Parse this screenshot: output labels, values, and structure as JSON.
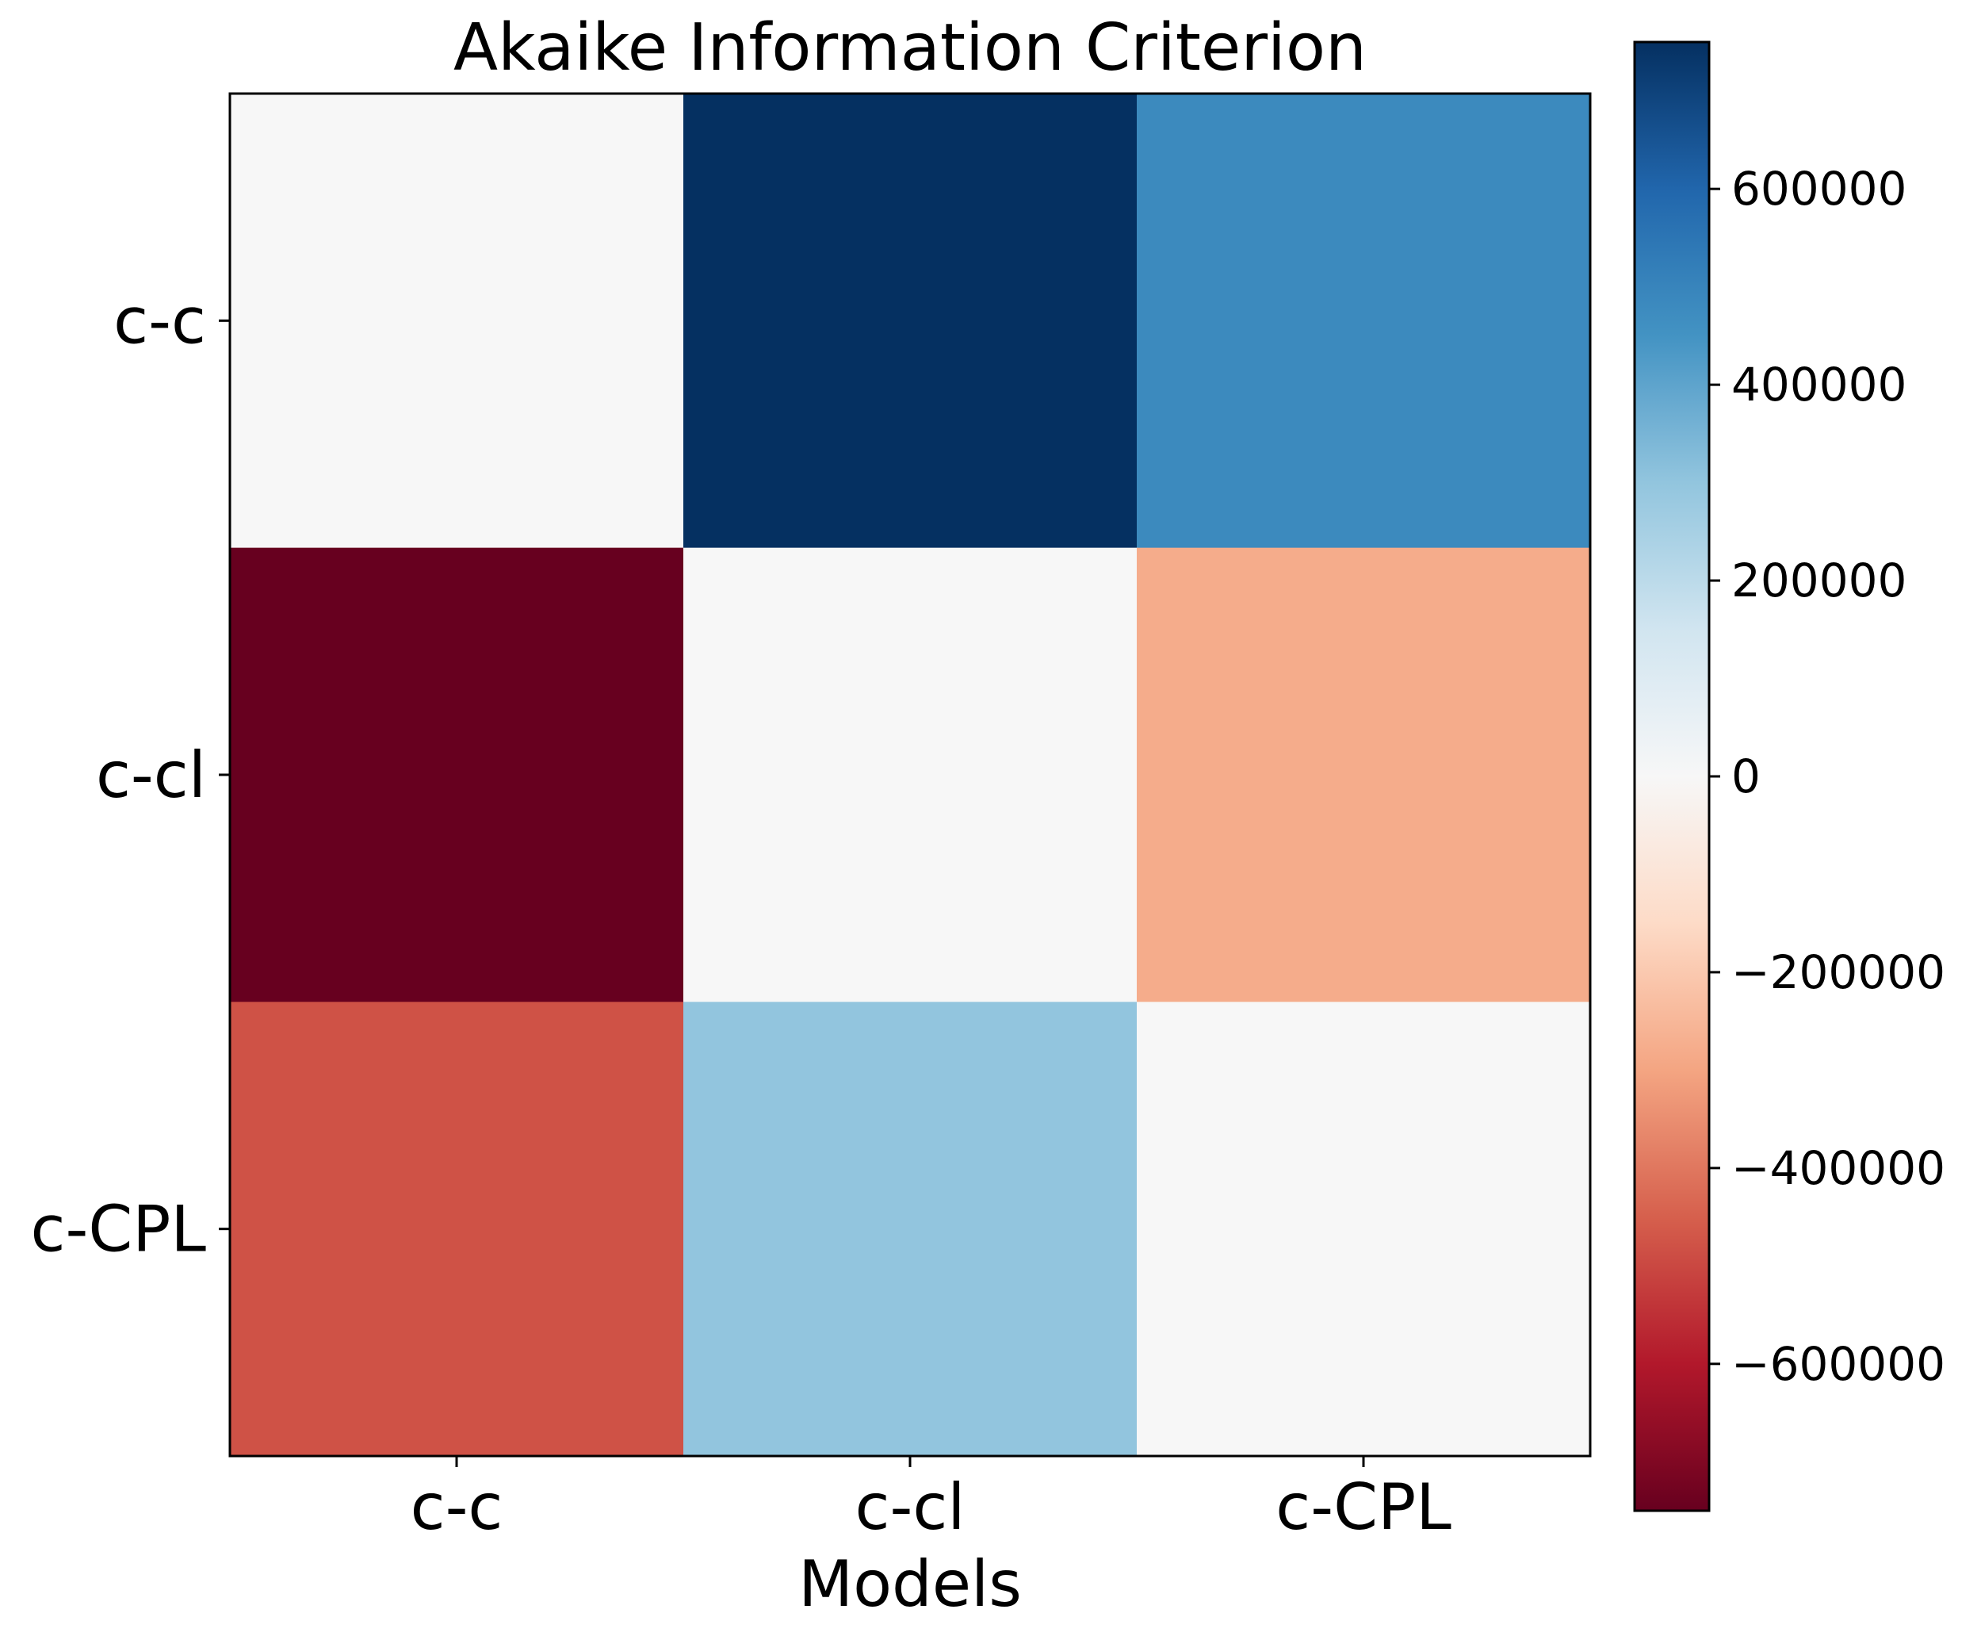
{
  "chart_data": {
    "type": "heatmap",
    "title": "Akaike Information Criterion",
    "xlabel": "Models",
    "ylabel": "",
    "x_categories": [
      "c-c",
      "c-cl",
      "c-CPL"
    ],
    "y_categories": [
      "c-c",
      "c-cl",
      "c-CPL"
    ],
    "values": [
      [
        0,
        750000,
        480000
      ],
      [
        -750000,
        0,
        -280000
      ],
      [
        -480000,
        300000,
        0
      ]
    ],
    "colorbar": {
      "colormap": "RdBu",
      "range": [
        -750000,
        750000
      ],
      "ticks": [
        600000,
        400000,
        200000,
        0,
        -200000,
        -400000,
        -600000
      ],
      "tick_labels": [
        "600000",
        "400000",
        "200000",
        "0",
        "−200000",
        "−400000",
        "−600000"
      ],
      "position": "right"
    },
    "grid": false
  }
}
